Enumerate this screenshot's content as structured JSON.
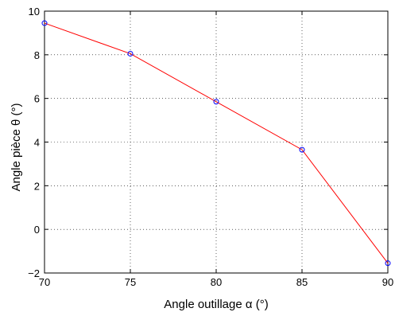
{
  "chart_data": {
    "type": "line",
    "title": "",
    "xlabel": "Angle outillage α (°)",
    "ylabel": "Angle pièce θ (°)",
    "xlim": [
      70,
      90
    ],
    "ylim": [
      -2,
      10
    ],
    "xticks": [
      70,
      75,
      80,
      85,
      90
    ],
    "yticks": [
      -2,
      0,
      2,
      4,
      6,
      8,
      10
    ],
    "grid": true,
    "grid_style": "dotted",
    "series": [
      {
        "x": [
          70,
          75,
          80,
          85,
          90
        ],
        "y": [
          9.45,
          8.05,
          5.85,
          3.65,
          -1.55
        ],
        "line_color": "#ff0000",
        "marker": "circle",
        "marker_color": "#0000ff"
      }
    ]
  }
}
